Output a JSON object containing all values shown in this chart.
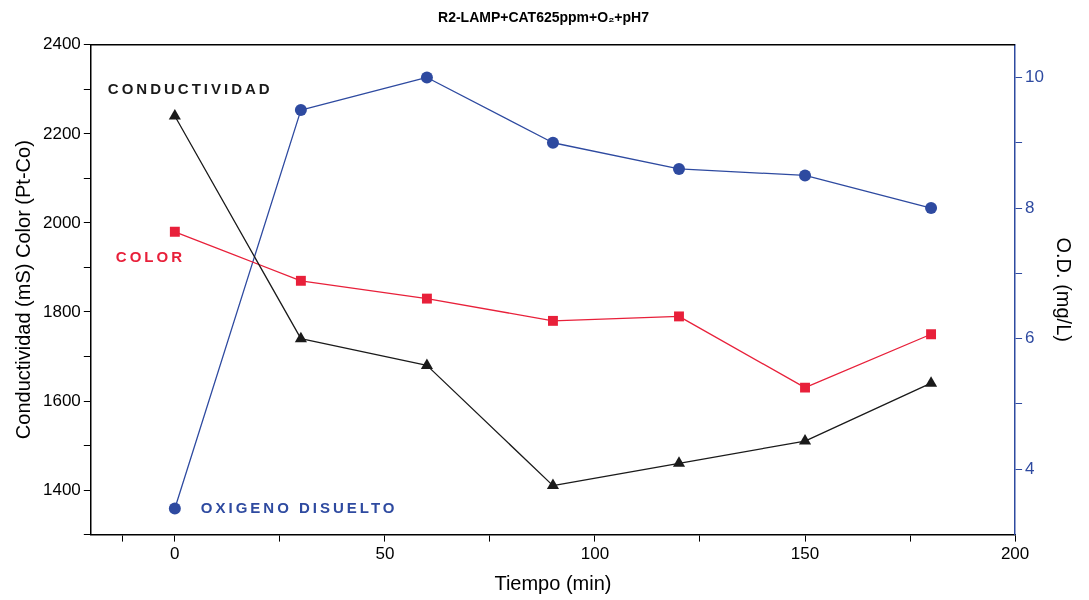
{
  "chart_data": {
    "type": "line",
    "title": "R2-LAMP+CAT625ppm+O₂+pH7",
    "xlabel": "Tiempo (min)",
    "ylabel": "Conductividad (mS) Color (Pt-Co)",
    "y2label": "O.D. (mg/L)",
    "x": [
      0,
      30,
      60,
      90,
      120,
      150,
      180
    ],
    "series": [
      {
        "name": "CONDUCTIVIDAD",
        "color": "#1a1a1a",
        "marker": "triangle",
        "values": [
          2240,
          1740,
          1680,
          1410,
          1460,
          1510,
          1640
        ]
      },
      {
        "name": "COLOR",
        "color": "#e8203a",
        "marker": "square",
        "values": [
          1980,
          1870,
          1830,
          1780,
          1790,
          1630,
          1750
        ]
      },
      {
        "name": "OXIGENO DISUELTO",
        "color": "#2e4aa0",
        "marker": "circle",
        "axis": "y2",
        "values": [
          3.4,
          9.5,
          10,
          9,
          8.6,
          8.5,
          8
        ]
      }
    ],
    "xlim": [
      -20,
      200
    ],
    "xticks": [
      {
        "value": -12.5,
        "label": null
      },
      0,
      {
        "value": 25,
        "label": null
      },
      50,
      {
        "value": 75,
        "label": null
      },
      100,
      {
        "value": 125,
        "label": null
      },
      150,
      {
        "value": 175,
        "label": null
      },
      200
    ],
    "ylim": [
      1300,
      2400
    ],
    "yticks": [
      {
        "value": 1300,
        "label": null
      },
      1400,
      {
        "value": 1500,
        "label": null
      },
      1600,
      {
        "value": 1700,
        "label": null
      },
      1800,
      {
        "value": 1900,
        "label": null
      },
      2000,
      {
        "value": 2100,
        "label": null
      },
      2200,
      {
        "value": 2300,
        "label": null
      },
      2400
    ],
    "y2lim": [
      3,
      10.5
    ],
    "y2ticks": [
      4,
      {
        "value": 5,
        "label": null
      },
      6,
      {
        "value": 7,
        "label": null
      },
      8,
      {
        "value": 9,
        "label": null
      },
      10
    ],
    "legend": false,
    "grid": false,
    "line_style": "solid"
  }
}
